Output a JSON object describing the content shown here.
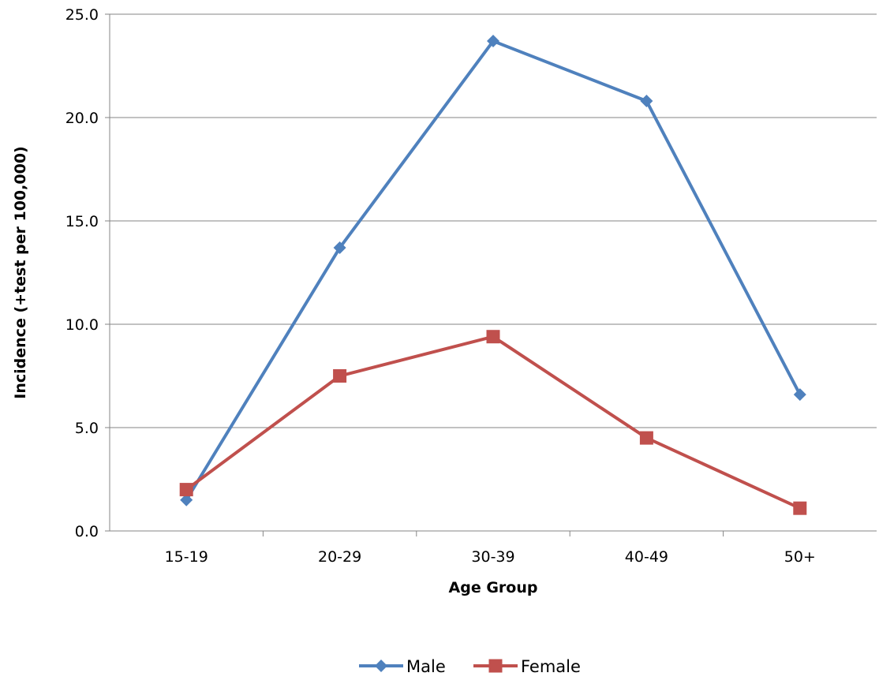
{
  "chart_data": {
    "type": "line",
    "title": "",
    "xlabel": "Age Group",
    "ylabel": "Incidence (+test  per 100,000)",
    "categories": [
      "15-19",
      "20-29",
      "30-39",
      "40-49",
      "50+"
    ],
    "ylim": [
      0,
      25
    ],
    "yticks": [
      "0.0",
      "5.0",
      "10.0",
      "15.0",
      "20.0",
      "25.0"
    ],
    "grid": "horizontal",
    "legend_position": "bottom",
    "series": [
      {
        "name": "Male",
        "values": [
          1.5,
          13.7,
          23.7,
          20.8,
          6.6
        ],
        "color": "#4F81BD",
        "marker": "diamond"
      },
      {
        "name": "Female",
        "values": [
          2.0,
          7.5,
          9.4,
          4.5,
          1.1
        ],
        "color": "#C0504D",
        "marker": "square"
      }
    ]
  }
}
